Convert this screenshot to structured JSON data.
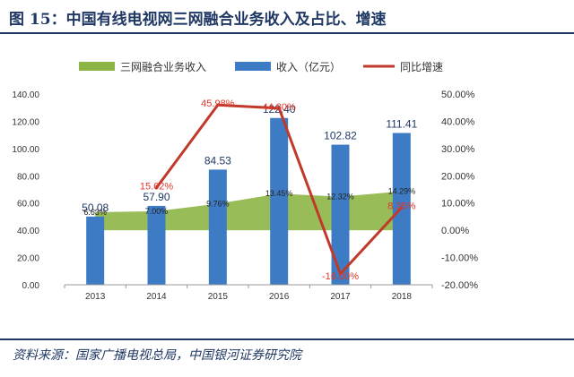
{
  "figure": {
    "title": "图 15：中国有线电视网三网融合业务收入及占比、增速",
    "source": "资料来源：国家广播电视总局，中国银河证券研究院"
  },
  "chart_data": {
    "type": "bar",
    "categories": [
      "2013",
      "2014",
      "2015",
      "2016",
      "2017",
      "2018"
    ],
    "series": [
      {
        "name": "三网融合业务收入",
        "kind": "area",
        "axis": "right",
        "values": [
          6.63,
          7.0,
          9.76,
          13.45,
          12.32,
          14.29
        ],
        "labels": [
          "6.63%",
          "7.00%",
          "9.76%",
          "13.45%",
          "12.32%",
          "14.29%"
        ],
        "color": "#8db545"
      },
      {
        "name": "收入（亿元）",
        "kind": "bar",
        "axis": "left",
        "values": [
          50.08,
          57.9,
          84.53,
          122.4,
          102.82,
          111.41
        ],
        "labels": [
          "50.08",
          "57.90",
          "84.53",
          "122.40",
          "102.82",
          "111.41"
        ],
        "color": "#3d7cc4"
      },
      {
        "name": "同比增速",
        "kind": "line",
        "axis": "right",
        "values": [
          null,
          15.62,
          45.98,
          44.8,
          -16.0,
          8.35
        ],
        "labels": [
          "",
          "15.62%",
          "45.98%",
          "44.80%",
          "-16.00%",
          "8.35%"
        ],
        "color": "#c0392b"
      }
    ],
    "y_left": {
      "lim": [
        0,
        140
      ],
      "ticks": [
        "0.00",
        "20.00",
        "40.00",
        "60.00",
        "80.00",
        "100.00",
        "120.00",
        "140.00"
      ]
    },
    "y_right": {
      "lim": [
        -20,
        50
      ],
      "ticks": [
        "-20.00%",
        "-10.00%",
        "0.00%",
        "10.00%",
        "20.00%",
        "30.00%",
        "40.00%",
        "50.00%"
      ]
    },
    "legend_position": "top"
  }
}
